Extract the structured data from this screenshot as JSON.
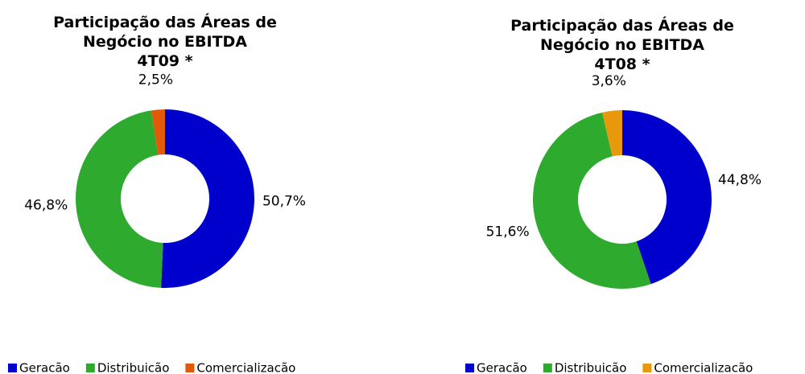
{
  "chart_data": [
    {
      "type": "donut",
      "title": "Participação das Áreas de Negócio no EBITDA",
      "subtitle": "4T09 *",
      "categories": [
        "Geracão",
        "Distribuicão",
        "Comercializacão"
      ],
      "values": [
        50.7,
        46.8,
        2.5
      ],
      "value_labels": [
        "50,7%",
        "46,8%",
        "2,5%"
      ],
      "colors": [
        "#0000cc",
        "#2eaa2e",
        "#e05a0a"
      ],
      "legend": "bottom"
    },
    {
      "type": "donut",
      "title": "Participação das Áreas de Negócio no EBITDA",
      "subtitle": "4T08 *",
      "categories": [
        "Geracão",
        "Distribuicão",
        "Comercializacão"
      ],
      "values": [
        44.8,
        51.6,
        3.6
      ],
      "value_labels": [
        "44,8%",
        "51,6%",
        "3,6%"
      ],
      "colors": [
        "#0000cc",
        "#2eaa2e",
        "#e8980c"
      ],
      "legend": "bottom"
    }
  ]
}
